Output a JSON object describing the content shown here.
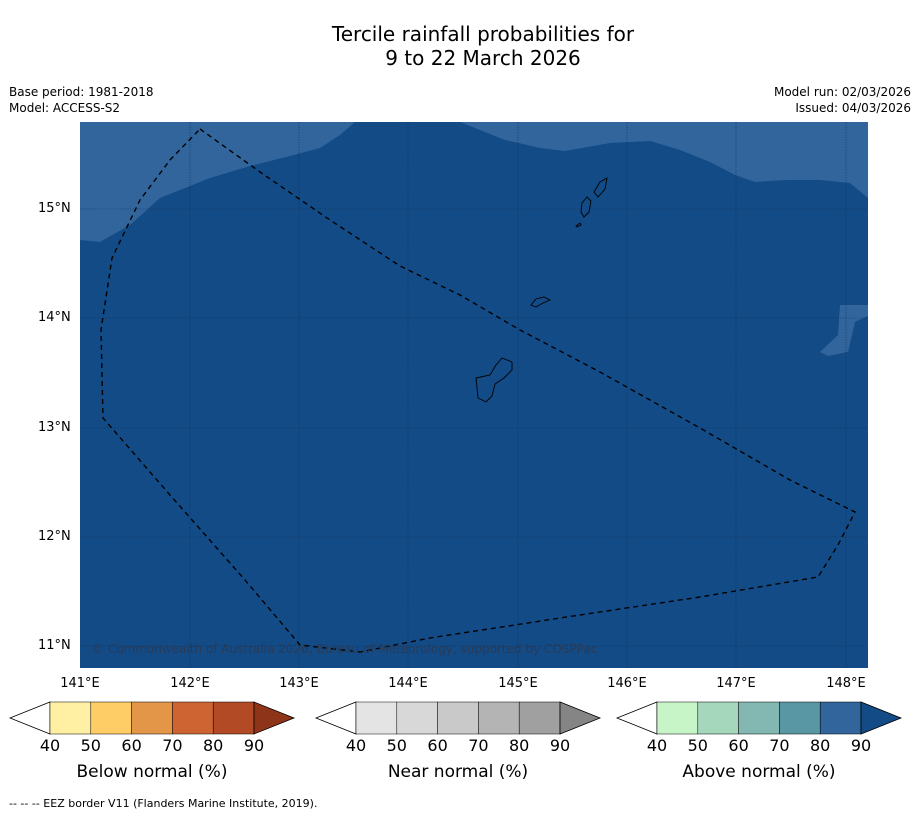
{
  "title_line1": "Tercile rainfall probabilities for",
  "title_line2": "9 to 22 March 2026",
  "base_period": "Base period: 1981-2018",
  "model": "Model: ACCESS-S2",
  "model_run": "Model run: 02/03/2026",
  "issued": "Issued: 04/03/2026",
  "copyright": "© Commonwealth of Australia 2026, Bureau of Meteorology, supported by COSPPac",
  "footnote": "--  --  -- EEZ border V11 (Flanders Marine Institute, 2019).",
  "lat_labels": [
    "15°N",
    "14°N",
    "13°N",
    "12°N",
    "11°N"
  ],
  "lon_labels": [
    "141°E",
    "142°E",
    "143°E",
    "144°E",
    "145°E",
    "146°E",
    "147°E",
    "148°E"
  ],
  "colors": {
    "above_80_90": "#134b87",
    "above_70_80": "#31659c"
  },
  "colorbars": [
    {
      "title": "Below normal (%)",
      "ticks": [
        "40",
        "50",
        "60",
        "70",
        "80",
        "90"
      ],
      "colors": [
        "#ffffff",
        "#fff0a3",
        "#ffcd65",
        "#e39548",
        "#cf6433",
        "#b24a26",
        "#8e3419"
      ]
    },
    {
      "title": "Near normal (%)",
      "ticks": [
        "40",
        "50",
        "60",
        "70",
        "80",
        "90"
      ],
      "colors": [
        "#ffffff",
        "#e4e4e4",
        "#d8d8d8",
        "#c9c9c9",
        "#b4b4b4",
        "#a0a0a0",
        "#858585"
      ]
    },
    {
      "title": "Above normal (%)",
      "ticks": [
        "40",
        "50",
        "60",
        "70",
        "80",
        "90"
      ],
      "colors": [
        "#ffffff",
        "#c8f5c8",
        "#a5d7bd",
        "#82b8b1",
        "#5a97a5",
        "#31659c",
        "#134b87"
      ]
    }
  ]
}
